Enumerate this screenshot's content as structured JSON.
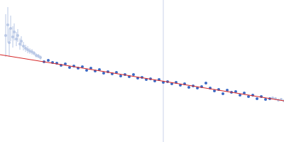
{
  "chart_data": {
    "type": "scatter",
    "xlim": [
      0,
      400
    ],
    "ylim": [
      0,
      200
    ],
    "tick_labels": false,
    "grid": false,
    "reference_x": 230,
    "series": [
      {
        "type": "scatter",
        "color": "#b9c8e6",
        "marker": "circle",
        "x": [
          8,
          11,
          13,
          15,
          18,
          20,
          23,
          25,
          28,
          30,
          33,
          36,
          39,
          42,
          45,
          48,
          51,
          54,
          57
        ],
        "values": [
          150,
          165,
          140,
          160,
          148,
          155,
          145,
          150,
          138,
          142,
          135,
          132,
          130,
          128,
          127,
          125,
          122,
          121,
          119
        ],
        "errors": [
          30,
          25,
          20,
          18,
          15,
          12,
          10,
          9,
          8,
          7,
          6,
          5,
          5,
          4,
          4,
          3,
          3,
          3,
          3
        ]
      },
      {
        "type": "scatter",
        "color": "#3a68c4",
        "marker": "circle",
        "x": [
          62,
          68,
          74,
          80,
          86,
          92,
          98,
          104,
          110,
          116,
          122,
          128,
          134,
          140,
          146,
          152,
          158,
          164,
          170,
          176,
          182,
          188,
          194,
          200,
          206,
          212,
          218,
          224,
          230,
          236,
          242,
          248,
          254,
          260,
          266,
          272,
          278,
          284,
          290,
          296,
          302,
          308,
          314,
          320,
          326,
          332,
          338,
          344,
          350,
          356,
          362,
          368,
          374,
          380
        ],
        "values": [
          113,
          115,
          112,
          111,
          108,
          110,
          105,
          107,
          104,
          106,
          101,
          104,
          100,
          102,
          97,
          99,
          96,
          98,
          93,
          95,
          92,
          95,
          90,
          91,
          88,
          89,
          86,
          88,
          84,
          85,
          82,
          84,
          80,
          82,
          77,
          79,
          76,
          78,
          83,
          76,
          72,
          74,
          68,
          73,
          70,
          71,
          66,
          69,
          64,
          66,
          61,
          64,
          60,
          61
        ]
      },
      {
        "type": "scatter",
        "color": "#b9c8e6",
        "marker": "circle",
        "x": [
          384,
          388,
          392,
          396,
          400
        ],
        "values": [
          62,
          61,
          59,
          60,
          58
        ],
        "errors": [
          2,
          2,
          2,
          2,
          2
        ]
      },
      {
        "type": "line",
        "color": "#d62728",
        "line_style": "solid",
        "x": [
          0,
          400
        ],
        "values": [
          123,
          58
        ]
      }
    ]
  }
}
